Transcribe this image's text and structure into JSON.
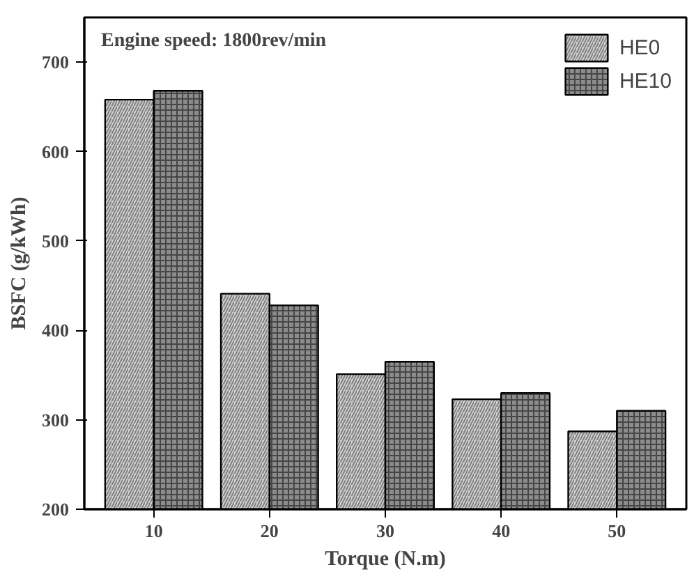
{
  "chart_data": {
    "type": "bar",
    "xlabel": "Torque (N.m)",
    "ylabel": "BSFC (g/kWh)",
    "annotations": [
      "Engine speed: 1800rev/min"
    ],
    "categories": [
      "10",
      "20",
      "30",
      "40",
      "50"
    ],
    "series": [
      {
        "name": "HE0",
        "color": "#d4d4d4",
        "values": [
          658,
          441,
          351,
          323,
          287
        ]
      },
      {
        "name": "HE10",
        "color": "#8c8c8c",
        "values": [
          668,
          428,
          365,
          330,
          310
        ]
      }
    ],
    "ylim": [
      200,
      750
    ],
    "yticks": [
      200,
      300,
      400,
      500,
      600,
      700
    ],
    "grid": false,
    "legend": "top right"
  }
}
